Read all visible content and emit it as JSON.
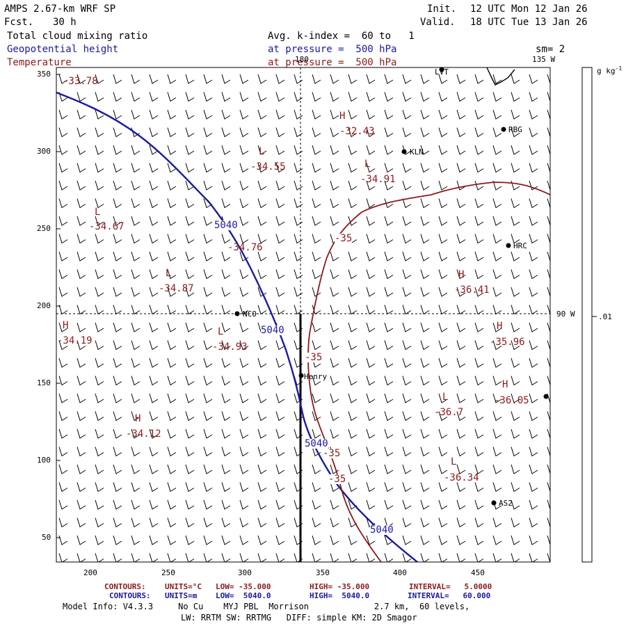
{
  "header": {
    "model": "AMPS 2.67-km WRF SP",
    "fcst_label": "Fcst.",
    "fcst_value": "30 h",
    "init_label": "Init.",
    "init_value": "12 UTC Mon 12 Jan 26",
    "valid_label": "Valid.",
    "valid_value": "18 UTC Tue 13 Jan 26",
    "field1": "Total cloud mixing ratio",
    "field2": "Geopotential height",
    "field3": "Temperature",
    "avg": "Avg. k-index =  60 to   1",
    "pressure2": "at pressure =  500 hPa",
    "pressure3": "at pressure =  500 hPa",
    "smoothing": "sm= 2"
  },
  "colorbar": {
    "unit": "g kg",
    "unit_sup": "-1",
    "tick": ".01"
  },
  "map": {
    "lon_180": "180",
    "lon_135w": "135 W",
    "lon_90w": "90 W",
    "y_ticks": [
      "350",
      "300",
      "250",
      "200",
      "150",
      "100",
      "50"
    ],
    "x_ticks": [
      "200",
      "250",
      "300",
      "350",
      "400",
      "450"
    ],
    "stations": [
      {
        "id": "LVT",
        "label": "LVT"
      },
      {
        "id": "RBG",
        "label": "RBG"
      },
      {
        "id": "KLN",
        "label": "KLN"
      },
      {
        "id": "HRC",
        "label": "HRC"
      },
      {
        "id": "NCO",
        "label": "NCO"
      },
      {
        "id": "Henry",
        "label": "Henry"
      },
      {
        "id": "AS2",
        "label": "AS2"
      }
    ],
    "extremes": [
      {
        "kind": "",
        "value": "-33.78"
      },
      {
        "kind": "H",
        "value": "-32.43"
      },
      {
        "kind": "L",
        "value": "-34.55"
      },
      {
        "kind": "L",
        "value": "-34.91"
      },
      {
        "kind": "L",
        "value": "-34.67"
      },
      {
        "kind": "",
        "value": "-34.76"
      },
      {
        "kind": "L",
        "value": "-34.87"
      },
      {
        "kind": "H",
        "value": "-36.41"
      },
      {
        "kind": "H",
        "value": "-34.19"
      },
      {
        "kind": "L",
        "value": "-34.93"
      },
      {
        "kind": "H",
        "value": "-35.96"
      },
      {
        "kind": "L",
        "value": "-36.7"
      },
      {
        "kind": "H",
        "value": "-36.05"
      },
      {
        "kind": "H",
        "value": "-34.12"
      },
      {
        "kind": "L",
        "value": "-36.34"
      }
    ],
    "contour_labels_height": [
      "5040",
      "5040",
      "5040",
      "5040"
    ],
    "contour_labels_temp": [
      "-35",
      "-35",
      "-35",
      "-35"
    ]
  },
  "footer": {
    "line1_prefix": "CONTOURS:",
    "line1_units": "UNITS=°C",
    "line1_low": "LOW= -35.000",
    "line1_high": "HIGH= -35.000",
    "line1_interval": "INTERVAL=   5.0000",
    "line2_prefix": "CONTOURS:",
    "line2_units": "UNITS=m",
    "line2_low": "LOW=  5040.0",
    "line2_high": "HIGH=  5040.0",
    "line2_interval": "INTERVAL=   60.000",
    "model_info": "Model Info: V4.3.3     No Cu    MYJ PBL  Morrison             2.7 km,  60 levels,",
    "model_info2": "LW: RRTM SW: RRTMG   DIFF: simple KM: 2D Smagor"
  },
  "colors": {
    "height_contour": "#1a1a9c",
    "temp_contour": "#8b1a1a",
    "barb": "#000000"
  }
}
